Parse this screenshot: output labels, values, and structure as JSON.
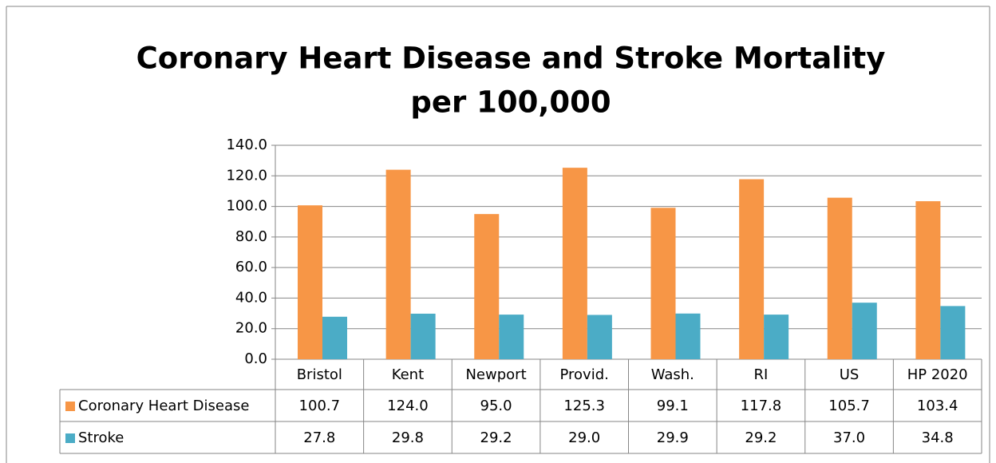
{
  "chart_data": {
    "type": "bar",
    "title": [
      "Coronary Heart Disease and Stroke Mortality",
      "per 100,000"
    ],
    "categories": [
      "Bristol",
      "Kent",
      "Newport",
      "Provid.",
      "Wash.",
      "RI",
      "US",
      "HP 2020"
    ],
    "series": [
      {
        "name": "Coronary Heart Disease",
        "color": "#f79646",
        "values": [
          100.7,
          124.0,
          95.0,
          125.3,
          99.1,
          117.8,
          105.7,
          103.4
        ],
        "value_labels": [
          "100.7",
          "124.0",
          "95.0",
          "125.3",
          "99.1",
          "117.8",
          "105.7",
          "103.4"
        ]
      },
      {
        "name": "Stroke",
        "color": "#4bacc6",
        "values": [
          27.8,
          29.8,
          29.2,
          29.0,
          29.9,
          29.2,
          37.0,
          34.8
        ],
        "value_labels": [
          "27.8",
          "29.8",
          "29.2",
          "29.0",
          "29.9",
          "29.2",
          "37.0",
          "34.8"
        ]
      }
    ],
    "ylim": [
      0,
      140
    ],
    "yticks": [
      {
        "value": 0,
        "label": "0.0"
      },
      {
        "value": 20,
        "label": "20.0"
      },
      {
        "value": 40,
        "label": "40.0"
      },
      {
        "value": 60,
        "label": "60.0"
      },
      {
        "value": 80,
        "label": "80.0"
      },
      {
        "value": 100,
        "label": "100.0"
      },
      {
        "value": 120,
        "label": "120.0"
      },
      {
        "value": 140,
        "label": "140.0"
      }
    ],
    "grid": true,
    "legend": "table"
  }
}
